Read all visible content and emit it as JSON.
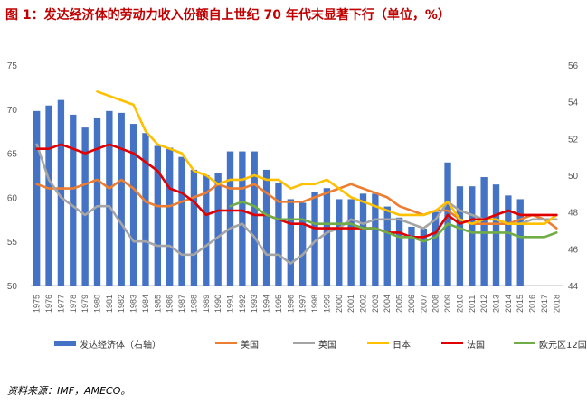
{
  "title": "图 1：发达经济体的劳动力收入份额自上世纪 70 年代末显著下行（单位，%）",
  "source": "资料来源：IMF，AMECO。",
  "chart_data": {
    "type": "bar",
    "years": [
      "1975",
      "1976",
      "1977",
      "1978",
      "1979",
      "1980",
      "1981",
      "1982",
      "1983",
      "1984",
      "1985",
      "1986",
      "1987",
      "1988",
      "1989",
      "1990",
      "1991",
      "1992",
      "1993",
      "1994",
      "1995",
      "1996",
      "1997",
      "1998",
      "1999",
      "2000",
      "2001",
      "2002",
      "2003",
      "2004",
      "2005",
      "2006",
      "2007",
      "2008",
      "2009",
      "2010",
      "2011",
      "2012",
      "2013",
      "2014",
      "2015",
      "2016",
      "2017",
      "2018"
    ],
    "left_axis": {
      "min": 50,
      "max": 75,
      "ticks": [
        50,
        55,
        60,
        65,
        70,
        75
      ]
    },
    "right_axis": {
      "min": 44,
      "max": 56,
      "ticks": [
        44,
        46,
        48,
        50,
        52,
        54,
        56
      ]
    },
    "bar_series": {
      "name": "发达经济体（右轴）",
      "color": "#4472c4",
      "axis": "right",
      "values": [
        53.5,
        53.8,
        54.1,
        53.3,
        52.6,
        53.1,
        53.5,
        53.4,
        52.8,
        52.3,
        51.6,
        51.5,
        51.0,
        50.3,
        50.0,
        50.1,
        51.3,
        51.3,
        51.3,
        50.3,
        49.6,
        48.7,
        48.5,
        49.1,
        49.3,
        48.7,
        48.7,
        49.0,
        49.0,
        48.3,
        47.7,
        47.2,
        47.1,
        48.0,
        50.7,
        49.4,
        49.4,
        49.9,
        49.5,
        48.9,
        48.7,
        null,
        null,
        null
      ]
    },
    "line_series": [
      {
        "name": "美国",
        "color": "#ed7d31",
        "values": [
          61.5,
          61.0,
          61.0,
          61.0,
          61.5,
          62.0,
          61.0,
          62.0,
          61.0,
          59.5,
          59.0,
          59.0,
          59.5,
          60.0,
          60.5,
          61.5,
          61.0,
          61.0,
          61.5,
          60.5,
          59.5,
          59.5,
          59.5,
          60.0,
          60.5,
          61.0,
          61.5,
          61.0,
          60.5,
          60.0,
          59.0,
          58.5,
          58.0,
          58.5,
          58.5,
          57.5,
          57.0,
          57.0,
          57.0,
          57.0,
          57.5,
          58.0,
          57.5,
          56.5
        ]
      },
      {
        "name": "英国",
        "color": "#a5a5a5",
        "values": [
          66.0,
          62.0,
          60.0,
          59.0,
          58.0,
          59.0,
          59.0,
          57.0,
          55.0,
          55.0,
          54.5,
          54.5,
          53.5,
          53.5,
          54.5,
          55.5,
          56.5,
          57.0,
          55.5,
          53.5,
          53.5,
          52.5,
          53.5,
          55.0,
          56.0,
          56.5,
          57.5,
          57.0,
          57.5,
          57.5,
          57.5,
          57.0,
          56.5,
          57.5,
          59.5,
          58.5,
          58.0,
          57.5,
          57.5,
          57.0,
          57.0,
          57.5,
          57.5,
          57.5
        ]
      },
      {
        "name": "日本",
        "color": "#ffc000",
        "values": [
          null,
          null,
          null,
          null,
          null,
          72.0,
          71.5,
          71.0,
          70.5,
          67.5,
          66.0,
          65.5,
          65.0,
          63.0,
          62.5,
          61.5,
          62.0,
          62.0,
          62.5,
          62.0,
          62.0,
          61.0,
          61.5,
          61.5,
          62.0,
          61.0,
          60.0,
          59.5,
          59.0,
          58.5,
          58.0,
          58.0,
          58.0,
          58.5,
          59.5,
          57.5,
          57.0,
          57.5,
          57.5,
          57.0,
          57.0,
          57.0,
          57.0,
          58.0
        ]
      },
      {
        "name": "法国",
        "color": "#e00000",
        "values": [
          65.5,
          65.5,
          66.0,
          65.5,
          65.0,
          65.5,
          66.0,
          65.5,
          65.0,
          64.0,
          63.0,
          61.0,
          60.5,
          59.5,
          58.0,
          58.5,
          58.5,
          58.5,
          58.0,
          58.0,
          57.5,
          57.0,
          57.0,
          56.5,
          56.5,
          56.5,
          56.5,
          56.5,
          56.5,
          56.0,
          56.0,
          55.5,
          55.5,
          56.0,
          58.0,
          57.0,
          57.5,
          57.5,
          58.0,
          58.5,
          58.0,
          58.0,
          58.0,
          58.0
        ]
      },
      {
        "name": "欧元区12国",
        "color": "#70ad47",
        "values": [
          null,
          null,
          null,
          null,
          null,
          null,
          null,
          null,
          null,
          null,
          null,
          null,
          null,
          null,
          null,
          null,
          59.0,
          59.5,
          59.0,
          58.0,
          57.5,
          57.5,
          57.5,
          57.0,
          57.0,
          57.0,
          57.0,
          56.5,
          56.5,
          56.0,
          55.5,
          55.5,
          55.0,
          55.5,
          57.0,
          56.5,
          56.0,
          56.0,
          56.0,
          56.0,
          55.5,
          55.5,
          55.5,
          56.0
        ]
      }
    ]
  }
}
